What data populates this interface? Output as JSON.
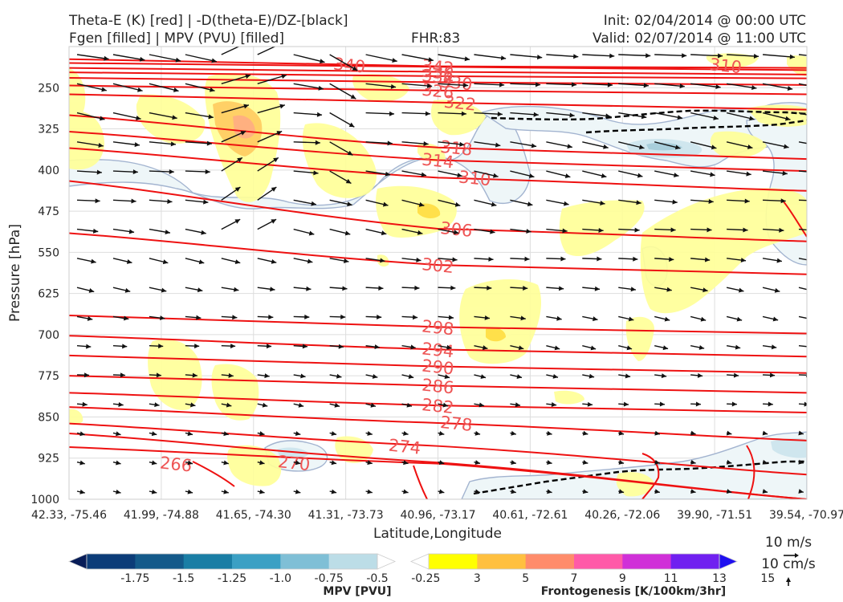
{
  "header": {
    "title_line1": "Theta-E (K) [red] | -D(theta-E)/DZ-[black]",
    "title_line2": "Fgen [filled] | MPV (PVU) [filled]",
    "fhr": "FHR:83",
    "init": "Init: 02/04/2014 @ 00:00 UTC",
    "valid": "Valid: 02/07/2014 @ 11:00 UTC"
  },
  "chart_data": {
    "type": "cross-section",
    "xlabel": "Latitude,Longitude",
    "ylabel": "Pressure [hPa]",
    "x_ticks": [
      "42.33, -75.46",
      "41.99, -74.88",
      "41.65, -74.30",
      "41.31, -73.73",
      "40.96, -73.17",
      "40.61, -72.61",
      "40.26, -72.06",
      "39.90, -71.51",
      "39.54, -70.97"
    ],
    "y_ticks": [
      250,
      325,
      400,
      475,
      550,
      625,
      700,
      775,
      850,
      925,
      1000
    ],
    "ylim": [
      1000,
      175
    ],
    "grid": true,
    "theta_e_contours": [
      266,
      270,
      274,
      278,
      282,
      286,
      290,
      294,
      298,
      302,
      306,
      310,
      314,
      318,
      322,
      326,
      330,
      334,
      338,
      340,
      342
    ],
    "theta_e_labels": [
      {
        "value": "266",
        "x": 0.145,
        "p": 935
      },
      {
        "value": "270",
        "x": 0.305,
        "p": 933
      },
      {
        "value": "274",
        "x": 0.455,
        "p": 903
      },
      {
        "value": "278",
        "x": 0.525,
        "p": 861
      },
      {
        "value": "282",
        "x": 0.5,
        "p": 829
      },
      {
        "value": "286",
        "x": 0.5,
        "p": 793
      },
      {
        "value": "290",
        "x": 0.5,
        "p": 758
      },
      {
        "value": "294",
        "x": 0.5,
        "p": 727
      },
      {
        "value": "298",
        "x": 0.5,
        "p": 686
      },
      {
        "value": "302",
        "x": 0.5,
        "p": 573
      },
      {
        "value": "306",
        "x": 0.525,
        "p": 507
      },
      {
        "value": "310",
        "x": 0.55,
        "p": 414
      },
      {
        "value": "314",
        "x": 0.5,
        "p": 382
      },
      {
        "value": "318",
        "x": 0.525,
        "p": 359
      },
      {
        "value": "322",
        "x": 0.53,
        "p": 277
      },
      {
        "value": "326",
        "x": 0.5,
        "p": 255
      },
      {
        "value": "330",
        "x": 0.525,
        "p": 240
      },
      {
        "value": "334",
        "x": 0.5,
        "p": 229
      },
      {
        "value": "338",
        "x": 0.5,
        "p": 221
      },
      {
        "value": "340",
        "x": 0.38,
        "p": 208
      },
      {
        "value": "342",
        "x": 0.5,
        "p": 211
      },
      {
        "value": "310",
        "x": 0.89,
        "p": 209
      }
    ],
    "mpv_colorbar": {
      "label": "MPV [PVU]",
      "ticks": [
        "-1.75",
        "-1.5",
        "-1.25",
        "-1.0",
        "-0.75",
        "-0.5",
        "-0.25"
      ],
      "colors": [
        "#081d58",
        "#0c3c78",
        "#145a8a",
        "#1a7ea5",
        "#3ba0c4",
        "#7fbfd6",
        "#bcdde7",
        "#ffffff"
      ]
    },
    "fgen_colorbar": {
      "label": "Frontogenesis [K/100km/3hr]",
      "ticks": [
        "3",
        "5",
        "7",
        "9",
        "11",
        "13",
        "15"
      ],
      "colors": [
        "#ffffff",
        "#ffff00",
        "#ffc040",
        "#ff8c6b",
        "#ff5aa8",
        "#d030d8",
        "#7020f0",
        "#2010f0"
      ]
    },
    "wind_key": {
      "horizontal": "10 m/s",
      "vertical": "10 cm/s"
    }
  }
}
